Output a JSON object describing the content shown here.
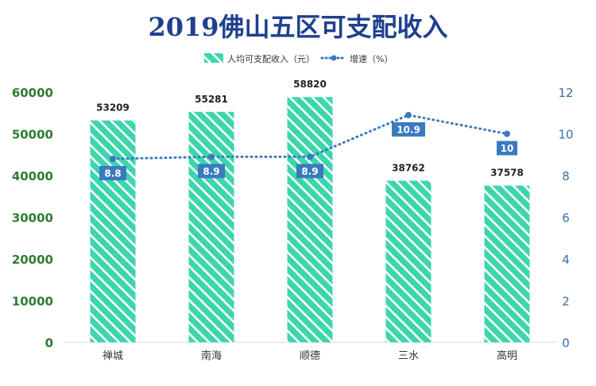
{
  "chart_data": {
    "type": "bar",
    "title": "2019佛山五区可支配收入",
    "categories": [
      "禅城",
      "南海",
      "顺德",
      "三水",
      "高明"
    ],
    "series": [
      {
        "name": "人均可支配收入（元）",
        "type": "bar",
        "axis": "left",
        "values": [
          53209,
          55281,
          58820,
          38762,
          37578
        ]
      },
      {
        "name": "增速（%）",
        "type": "line",
        "axis": "right",
        "values": [
          8.8,
          8.9,
          8.9,
          10.9,
          10
        ]
      }
    ],
    "y_left": {
      "ylim": [
        0,
        60000
      ],
      "ticks": [
        0,
        10000,
        20000,
        30000,
        40000,
        50000,
        60000
      ]
    },
    "y_right": {
      "ylim": [
        0,
        12
      ],
      "ticks": [
        0,
        2,
        4,
        6,
        8,
        10,
        12
      ]
    },
    "legend_position": "top-center",
    "grid": false,
    "colors": {
      "title": "#1f3f8f",
      "bar": "#3dd6ac",
      "bar_label": "#222222",
      "line": "#3a7abf",
      "line_label_bg": "#3a7abf",
      "left_axis_text": "#2e7d32",
      "right_axis_text": "#3a6ea5",
      "category_text": "#333333"
    }
  }
}
